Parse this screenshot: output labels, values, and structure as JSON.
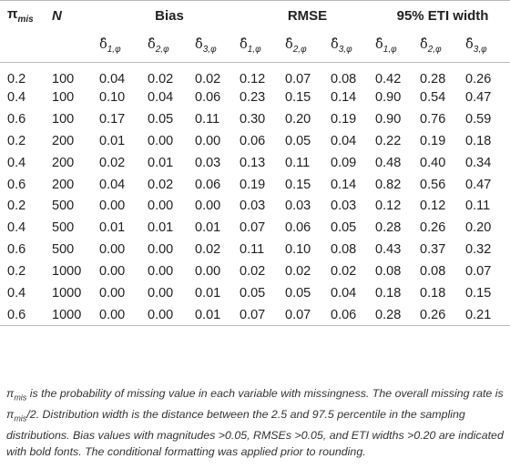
{
  "table": {
    "headers": {
      "pi": "π",
      "pi_sub": "mis",
      "n": "N",
      "bias": "Bias",
      "rmse": "RMSE",
      "eti": "95% ETI width",
      "delta": "δ̂",
      "subs": [
        "1,φ",
        "2,φ",
        "3,φ",
        "1,φ",
        "2,φ",
        "3,φ",
        "1,φ",
        "2,φ",
        "3,φ"
      ]
    },
    "rows": [
      {
        "pi": "0.2",
        "n": "100",
        "v": [
          "0.04",
          "0.02",
          "0.02",
          "0.12",
          "0.07",
          "0.08",
          "0.42",
          "0.28",
          "0.26"
        ],
        "bold": [
          false,
          false,
          false,
          true,
          true,
          true,
          true,
          true,
          true
        ]
      },
      {
        "pi": "0.4",
        "n": "100",
        "v": [
          "0.10",
          "0.04",
          "0.06",
          "0.23",
          "0.15",
          "0.14",
          "0.90",
          "0.54",
          "0.47"
        ],
        "bold": [
          true,
          false,
          true,
          true,
          true,
          true,
          true,
          true,
          true
        ]
      },
      {
        "pi": "0.6",
        "n": "100",
        "v": [
          "0.17",
          "0.05",
          "0.11",
          "0.30",
          "0.20",
          "0.19",
          "0.90",
          "0.76",
          "0.59"
        ],
        "bold": [
          true,
          true,
          true,
          true,
          true,
          true,
          true,
          true,
          true
        ]
      },
      {
        "pi": "0.2",
        "n": "200",
        "v": [
          "0.01",
          "0.00",
          "0.00",
          "0.06",
          "0.05",
          "0.04",
          "0.22",
          "0.19",
          "0.18"
        ],
        "bold": [
          false,
          false,
          false,
          true,
          false,
          false,
          true,
          false,
          false
        ]
      },
      {
        "pi": "0.4",
        "n": "200",
        "v": [
          "0.02",
          "0.01",
          "0.03",
          "0.13",
          "0.11",
          "0.09",
          "0.48",
          "0.40",
          "0.34"
        ],
        "bold": [
          false,
          false,
          false,
          true,
          true,
          true,
          true,
          true,
          true
        ]
      },
      {
        "pi": "0.6",
        "n": "200",
        "v": [
          "0.04",
          "0.02",
          "0.06",
          "0.19",
          "0.15",
          "0.14",
          "0.82",
          "0.56",
          "0.47"
        ],
        "bold": [
          false,
          false,
          true,
          true,
          true,
          true,
          true,
          true,
          true
        ]
      },
      {
        "pi": "0.2",
        "n": "500",
        "v": [
          "0.00",
          "0.00",
          "0.00",
          "0.03",
          "0.03",
          "0.03",
          "0.12",
          "0.12",
          "0.11"
        ],
        "bold": [
          false,
          false,
          false,
          false,
          false,
          false,
          false,
          false,
          false
        ]
      },
      {
        "pi": "0.4",
        "n": "500",
        "v": [
          "0.01",
          "0.01",
          "0.01",
          "0.07",
          "0.06",
          "0.05",
          "0.28",
          "0.26",
          "0.20"
        ],
        "bold": [
          false,
          false,
          false,
          true,
          true,
          true,
          true,
          true,
          true
        ]
      },
      {
        "pi": "0.6",
        "n": "500",
        "v": [
          "0.00",
          "0.00",
          "0.02",
          "0.11",
          "0.10",
          "0.08",
          "0.43",
          "0.37",
          "0.32"
        ],
        "bold": [
          false,
          false,
          false,
          true,
          true,
          true,
          true,
          true,
          true
        ]
      },
      {
        "pi": "0.2",
        "n": "1000",
        "v": [
          "0.00",
          "0.00",
          "0.00",
          "0.02",
          "0.02",
          "0.02",
          "0.08",
          "0.08",
          "0.07"
        ],
        "bold": [
          false,
          false,
          false,
          false,
          false,
          false,
          false,
          false,
          false
        ]
      },
      {
        "pi": "0.4",
        "n": "1000",
        "v": [
          "0.00",
          "0.00",
          "0.01",
          "0.05",
          "0.05",
          "0.04",
          "0.18",
          "0.18",
          "0.15"
        ],
        "bold": [
          false,
          false,
          false,
          false,
          false,
          false,
          false,
          false,
          false
        ]
      },
      {
        "pi": "0.6",
        "n": "1000",
        "v": [
          "0.00",
          "0.00",
          "0.01",
          "0.07",
          "0.07",
          "0.06",
          "0.28",
          "0.26",
          "0.21"
        ],
        "bold": [
          false,
          false,
          false,
          true,
          true,
          true,
          true,
          true,
          true
        ]
      }
    ]
  },
  "note": {
    "pi": "π",
    "sub": "mis",
    "part1": " is the probability of missing value in each variable with missingness. The overall missing rate is ",
    "part2": "/2. Distribution width is the distance between the 2.5 and 97.5 percentile in the sampling distributions. Bias values with magnitudes >0.05, RMSEs >0.05, and ETI widths >0.20 are indicated with bold fonts. The conditional formatting was applied prior to rounding."
  }
}
